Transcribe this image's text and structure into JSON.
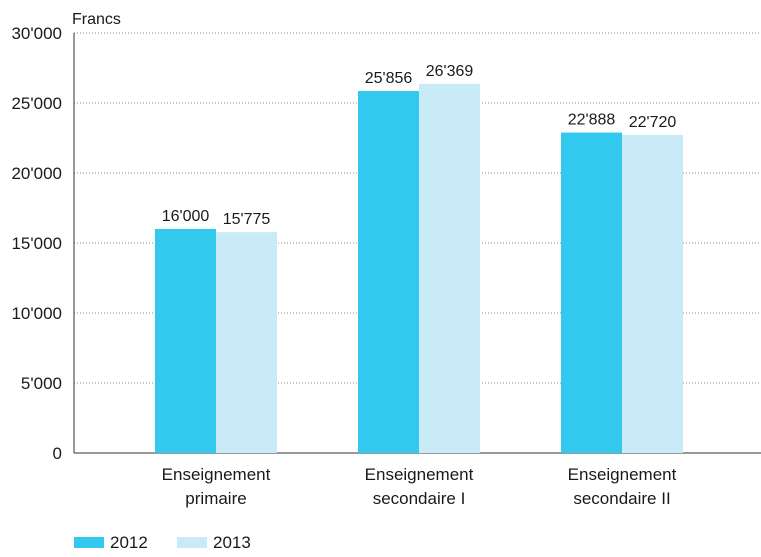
{
  "chart_data": {
    "type": "bar",
    "unit_label": "Francs",
    "categories": [
      [
        "Enseignement",
        "primaire"
      ],
      [
        "Enseignement",
        "secondaire I"
      ],
      [
        "Enseignement",
        "secondaire II"
      ]
    ],
    "series": [
      {
        "name": "2012",
        "color": "#33c8ee",
        "values": [
          16000,
          25856,
          22888
        ],
        "labels": [
          "16'000",
          "25'856",
          "22'888"
        ]
      },
      {
        "name": "2013",
        "color": "#c9eaf7",
        "values": [
          15775,
          26369,
          22720
        ],
        "labels": [
          "15'775",
          "26'369",
          "22'720"
        ]
      }
    ],
    "ylim": [
      0,
      30000
    ],
    "yticks": [
      {
        "value": 0,
        "label": "0"
      },
      {
        "value": 5000,
        "label": "5'000"
      },
      {
        "value": 10000,
        "label": "10'000"
      },
      {
        "value": 15000,
        "label": "15'000"
      },
      {
        "value": 20000,
        "label": "20'000"
      },
      {
        "value": 25000,
        "label": "25'000"
      },
      {
        "value": 30000,
        "label": "30'000"
      }
    ],
    "grid": true,
    "legend_position": "bottom-left"
  }
}
